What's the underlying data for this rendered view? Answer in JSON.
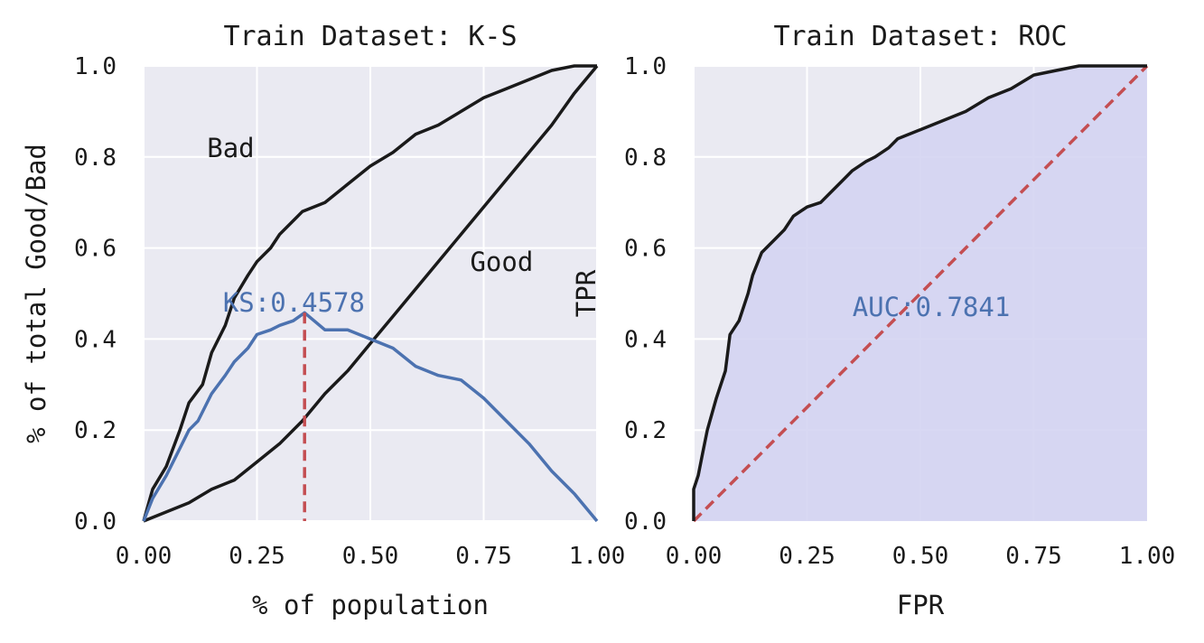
{
  "chart_data": [
    {
      "type": "line",
      "title": "Train Dataset: K-S",
      "xlabel": "% of population",
      "ylabel": "% of total Good/Bad",
      "xlim": [
        0,
        1
      ],
      "ylim": [
        0,
        1
      ],
      "grid": true,
      "xticks": [
        "0.00",
        "0.25",
        "0.50",
        "0.75",
        "1.00"
      ],
      "yticks": [
        "0.0",
        "0.2",
        "0.4",
        "0.6",
        "0.8",
        "1.0"
      ],
      "colors": {
        "bad": "#1a1a1a",
        "good": "#1a1a1a",
        "ks": "#4c72b0",
        "ks_marker": "#c44e52",
        "background": "#eaeaf2"
      },
      "series": [
        {
          "name": "Bad",
          "x": [
            0,
            0.02,
            0.05,
            0.08,
            0.1,
            0.13,
            0.15,
            0.18,
            0.2,
            0.23,
            0.25,
            0.28,
            0.3,
            0.33,
            0.35,
            0.4,
            0.45,
            0.5,
            0.55,
            0.6,
            0.65,
            0.7,
            0.75,
            0.8,
            0.85,
            0.9,
            0.95,
            1.0
          ],
          "y": [
            0,
            0.07,
            0.12,
            0.2,
            0.26,
            0.3,
            0.37,
            0.43,
            0.49,
            0.54,
            0.57,
            0.6,
            0.63,
            0.66,
            0.68,
            0.7,
            0.74,
            0.78,
            0.81,
            0.85,
            0.87,
            0.9,
            0.93,
            0.95,
            0.97,
            0.99,
            1.0,
            1.0
          ]
        },
        {
          "name": "Good",
          "x": [
            0,
            0.05,
            0.1,
            0.15,
            0.2,
            0.25,
            0.3,
            0.35,
            0.4,
            0.45,
            0.5,
            0.55,
            0.6,
            0.65,
            0.7,
            0.75,
            0.8,
            0.85,
            0.9,
            0.95,
            1.0
          ],
          "y": [
            0,
            0.02,
            0.04,
            0.07,
            0.09,
            0.13,
            0.17,
            0.22,
            0.28,
            0.33,
            0.39,
            0.45,
            0.51,
            0.57,
            0.63,
            0.69,
            0.75,
            0.81,
            0.87,
            0.94,
            1.0
          ]
        },
        {
          "name": "KS",
          "x": [
            0,
            0.02,
            0.05,
            0.08,
            0.1,
            0.12,
            0.15,
            0.18,
            0.2,
            0.23,
            0.25,
            0.28,
            0.3,
            0.33,
            0.355,
            0.4,
            0.45,
            0.5,
            0.55,
            0.6,
            0.65,
            0.7,
            0.75,
            0.8,
            0.85,
            0.9,
            0.95,
            1.0
          ],
          "y": [
            0,
            0.05,
            0.1,
            0.16,
            0.2,
            0.22,
            0.28,
            0.32,
            0.35,
            0.38,
            0.41,
            0.42,
            0.43,
            0.44,
            0.4578,
            0.42,
            0.42,
            0.4,
            0.38,
            0.34,
            0.32,
            0.31,
            0.27,
            0.22,
            0.17,
            0.11,
            0.06,
            0.0
          ]
        }
      ],
      "annotations": [
        {
          "text": "Bad",
          "x": 0.14,
          "y": 0.8
        },
        {
          "text": "Good",
          "x": 0.72,
          "y": 0.55
        },
        {
          "text": "KS:0.4578",
          "x": 0.175,
          "y": 0.46
        }
      ],
      "ks_point": {
        "x": 0.355,
        "y_low": 0.22,
        "y_high": 0.4578
      }
    },
    {
      "type": "area",
      "title": "Train Dataset: ROC",
      "xlabel": "FPR",
      "ylabel": "TPR",
      "xlim": [
        0,
        1
      ],
      "ylim": [
        0,
        1
      ],
      "grid": true,
      "xticks": [
        "0.00",
        "0.25",
        "0.50",
        "0.75",
        "1.00"
      ],
      "yticks": [
        "0.0",
        "0.2",
        "0.4",
        "0.6",
        "0.8",
        "1.0"
      ],
      "colors": {
        "roc": "#1a1a1a",
        "fill": "#d4d4f2",
        "diagonal": "#c44e52",
        "auc_text": "#4c72b0",
        "background": "#eaeaf2"
      },
      "series": [
        {
          "name": "ROC",
          "x": [
            0,
            0.0,
            0.01,
            0.02,
            0.03,
            0.05,
            0.07,
            0.08,
            0.1,
            0.12,
            0.13,
            0.15,
            0.18,
            0.2,
            0.22,
            0.25,
            0.28,
            0.3,
            0.33,
            0.35,
            0.38,
            0.4,
            0.43,
            0.45,
            0.5,
            0.55,
            0.6,
            0.65,
            0.7,
            0.75,
            0.8,
            0.85,
            0.9,
            1.0
          ],
          "y": [
            0,
            0.07,
            0.1,
            0.15,
            0.2,
            0.27,
            0.33,
            0.41,
            0.44,
            0.5,
            0.54,
            0.59,
            0.62,
            0.64,
            0.67,
            0.69,
            0.7,
            0.72,
            0.75,
            0.77,
            0.79,
            0.8,
            0.82,
            0.84,
            0.86,
            0.88,
            0.9,
            0.93,
            0.95,
            0.98,
            0.99,
            1.0,
            1.0,
            1.0
          ]
        },
        {
          "name": "Diagonal",
          "x": [
            0,
            1
          ],
          "y": [
            0,
            1
          ]
        }
      ],
      "annotations": [
        {
          "text": "AUC:0.7841",
          "x": 0.35,
          "y": 0.45
        }
      ]
    }
  ]
}
